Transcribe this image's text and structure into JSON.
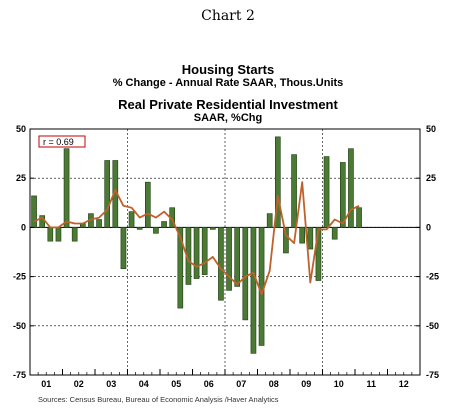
{
  "page_title": "Chart 2",
  "source": "Sources: Census Bureau, Bureau of Economic Analysis /Haver Analytics",
  "colors": {
    "housing_starts": "#4a7a33",
    "housing_starts_edge": "#1f3d12",
    "residential_investment": "#c0612b"
  },
  "chart_data": {
    "type": "bar",
    "series": [
      {
        "name": "Housing Starts",
        "subtitle": "% Change - Annual Rate    SAAR, Thous.Units",
        "kind": "bar",
        "values": [
          16,
          6,
          -7,
          -7,
          40,
          -7,
          2,
          7,
          4,
          34,
          34,
          -21,
          8,
          -1,
          23,
          -3,
          3,
          10,
          -41,
          -29,
          -26,
          -24,
          -1,
          -37,
          -32,
          -30,
          -47,
          -64,
          -60,
          7,
          46,
          -13,
          37,
          -8,
          -11,
          -27,
          36,
          -6,
          33,
          40,
          10
        ]
      },
      {
        "name": "Real Private Residential Investment",
        "subtitle": "SAAR, %Chg",
        "kind": "line",
        "values": [
          3,
          5,
          0,
          0,
          3,
          2,
          2,
          4,
          5,
          9,
          19,
          11,
          10,
          5,
          7,
          5,
          8,
          4,
          -5,
          -17,
          -20,
          -18,
          -15,
          -21,
          -25,
          -29,
          -25,
          -23,
          -34,
          -22,
          16,
          -4,
          -8,
          23,
          -28,
          -1,
          -1,
          4,
          2,
          9,
          11
        ]
      }
    ],
    "x_labels": [
      "01",
      "02",
      "03",
      "04",
      "05",
      "06",
      "07",
      "08",
      "09",
      "10",
      "11",
      "12"
    ],
    "y_ticks": [
      "50",
      "25",
      "0",
      "-25",
      "-50",
      "-75"
    ],
    "ylim": [
      -75,
      50
    ],
    "annotation": "r = 0.69",
    "grid": "dashed",
    "legend": "top-center"
  }
}
